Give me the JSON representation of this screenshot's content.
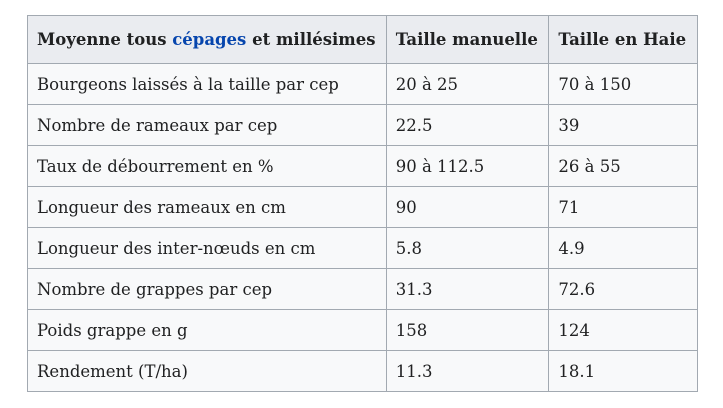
{
  "table": {
    "header": {
      "col1_prefix": "Moyenne tous ",
      "col1_link": "cépages",
      "col1_suffix": " et millésimes",
      "col2": "Taille manuelle",
      "col3": "Taille en Haie"
    },
    "rows": [
      {
        "label": "Bourgeons laissés à la taille par cep",
        "manuelle": "20 à 25",
        "haie": "70 à 150"
      },
      {
        "label": "Nombre de rameaux par cep",
        "manuelle": "22.5",
        "haie": "39"
      },
      {
        "label": "Taux de débourrement en %",
        "manuelle": "90 à 112.5",
        "haie": "26 à 55"
      },
      {
        "label": "Longueur des rameaux en cm",
        "manuelle": "90",
        "haie": "71"
      },
      {
        "label": "Longueur des inter-nœuds en cm",
        "manuelle": "5.8",
        "haie": "4.9"
      },
      {
        "label": "Nombre de grappes par cep",
        "manuelle": "31.3",
        "haie": "72.6"
      },
      {
        "label": "Poids grappe en g",
        "manuelle": "158",
        "haie": "124"
      },
      {
        "label": "Rendement (T/ha)",
        "manuelle": "11.3",
        "haie": "18.1"
      }
    ]
  },
  "colors": {
    "header_bg": "#eaecf0",
    "cell_bg": "#f8f9fa",
    "border": "#a2a9b1",
    "link": "#0645ad"
  }
}
